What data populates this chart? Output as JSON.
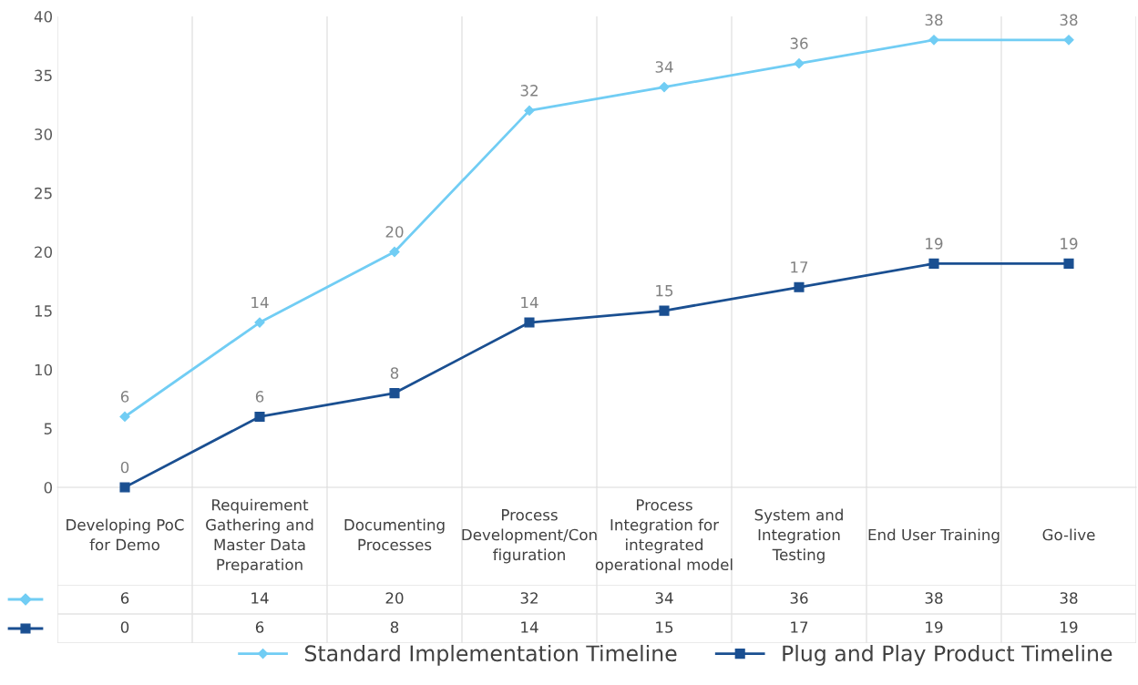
{
  "chart_data": [
    {
      "type": "line",
      "categories": [
        "Developing PoC\nfor Demo",
        "Requirement\nGathering and\nMaster Data\nPreparation",
        "Documenting\nProcesses",
        "Process\nDevelopment/Con\nfiguration",
        "Process\nIntegration for\nintegrated\noperational model",
        "System and\nIntegration\nTesting",
        "End User Training",
        "Go-live"
      ],
      "series": [
        {
          "name": "Standard Implementation Timeline",
          "color": "#71cdf4",
          "marker": "diamond",
          "values": [
            6,
            14,
            20,
            32,
            34,
            36,
            38,
            38
          ]
        },
        {
          "name": "Plug and Play Product Timeline",
          "color": "#1a4f91",
          "marker": "square",
          "values": [
            0,
            6,
            8,
            14,
            15,
            17,
            19,
            19
          ]
        }
      ],
      "ylim": [
        0,
        40
      ],
      "yticks": [
        0,
        5,
        10,
        15,
        20,
        25,
        30,
        35,
        40
      ],
      "data_labels": true,
      "grid": false,
      "legend": "bottom right",
      "line_style": "solid"
    },
    {
      "type": "other",
      "annotations": [
        "6",
        "14",
        "20",
        "32",
        "34",
        "36",
        "38",
        "38",
        "0",
        "6",
        "8",
        "14",
        "15",
        "17",
        "19",
        "19"
      ]
    }
  ]
}
